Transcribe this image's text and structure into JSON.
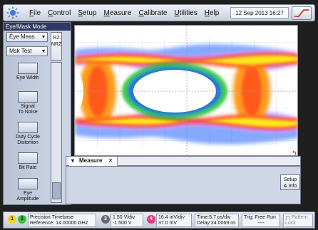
{
  "menu": {
    "items": [
      "File",
      "Control",
      "Setup",
      "Measure",
      "Calibrate",
      "Utilities",
      "Help"
    ],
    "datetime": "12 Sep 2013  16:27"
  },
  "left_panel": {
    "mode_title": "Eye/Mask Mode",
    "eye_meas": "Eye Meas",
    "msk_test": "Msk Test",
    "rz_nrz": [
      "RZ",
      "NRZ"
    ],
    "measurements": [
      {
        "label_line1": "Eye Width",
        "label_line2": ""
      },
      {
        "label_line1": "Signal",
        "label_line2": "To Noise"
      },
      {
        "label_line1": "Duty Cycle",
        "label_line2": "Distortion"
      },
      {
        "label_line1": "Bit Rate",
        "label_line2": ""
      },
      {
        "label_line1": "Eye",
        "label_line2": "Amplitude"
      }
    ]
  },
  "measure": {
    "tab_label": "Measure",
    "setup_info": [
      "Setup",
      "& Info"
    ]
  },
  "status": {
    "ch1": "1",
    "ch2": "2",
    "timebase_line1": "Precision Timebase",
    "timebase_line2": "Reference: 14.00000 GHz",
    "ch3": "3",
    "ch3_line1": "1.50 V/div",
    "ch3_line2": "-1.500 V",
    "ch4": "4",
    "ch4_line1": "16.4 mV/div",
    "ch4_line2": "37.0 mV",
    "time_line1": "Time:5.7 ps/div",
    "time_line2": "Delay:24.0069 ns",
    "trig_line1": "Trig: Free Run",
    "trig_line2": "----",
    "pattern_lock_line1": "Pattern",
    "pattern_lock_line2": "Lock"
  },
  "colors": {
    "background": "#1f1f1f",
    "display_bg": "#ffffff",
    "eye_hot": "#ff3b1f",
    "eye_orange": "#ff9b1f",
    "eye_yellow": "#ffe81f",
    "eye_green": "#20c020",
    "eye_blue": "#2060ff"
  }
}
